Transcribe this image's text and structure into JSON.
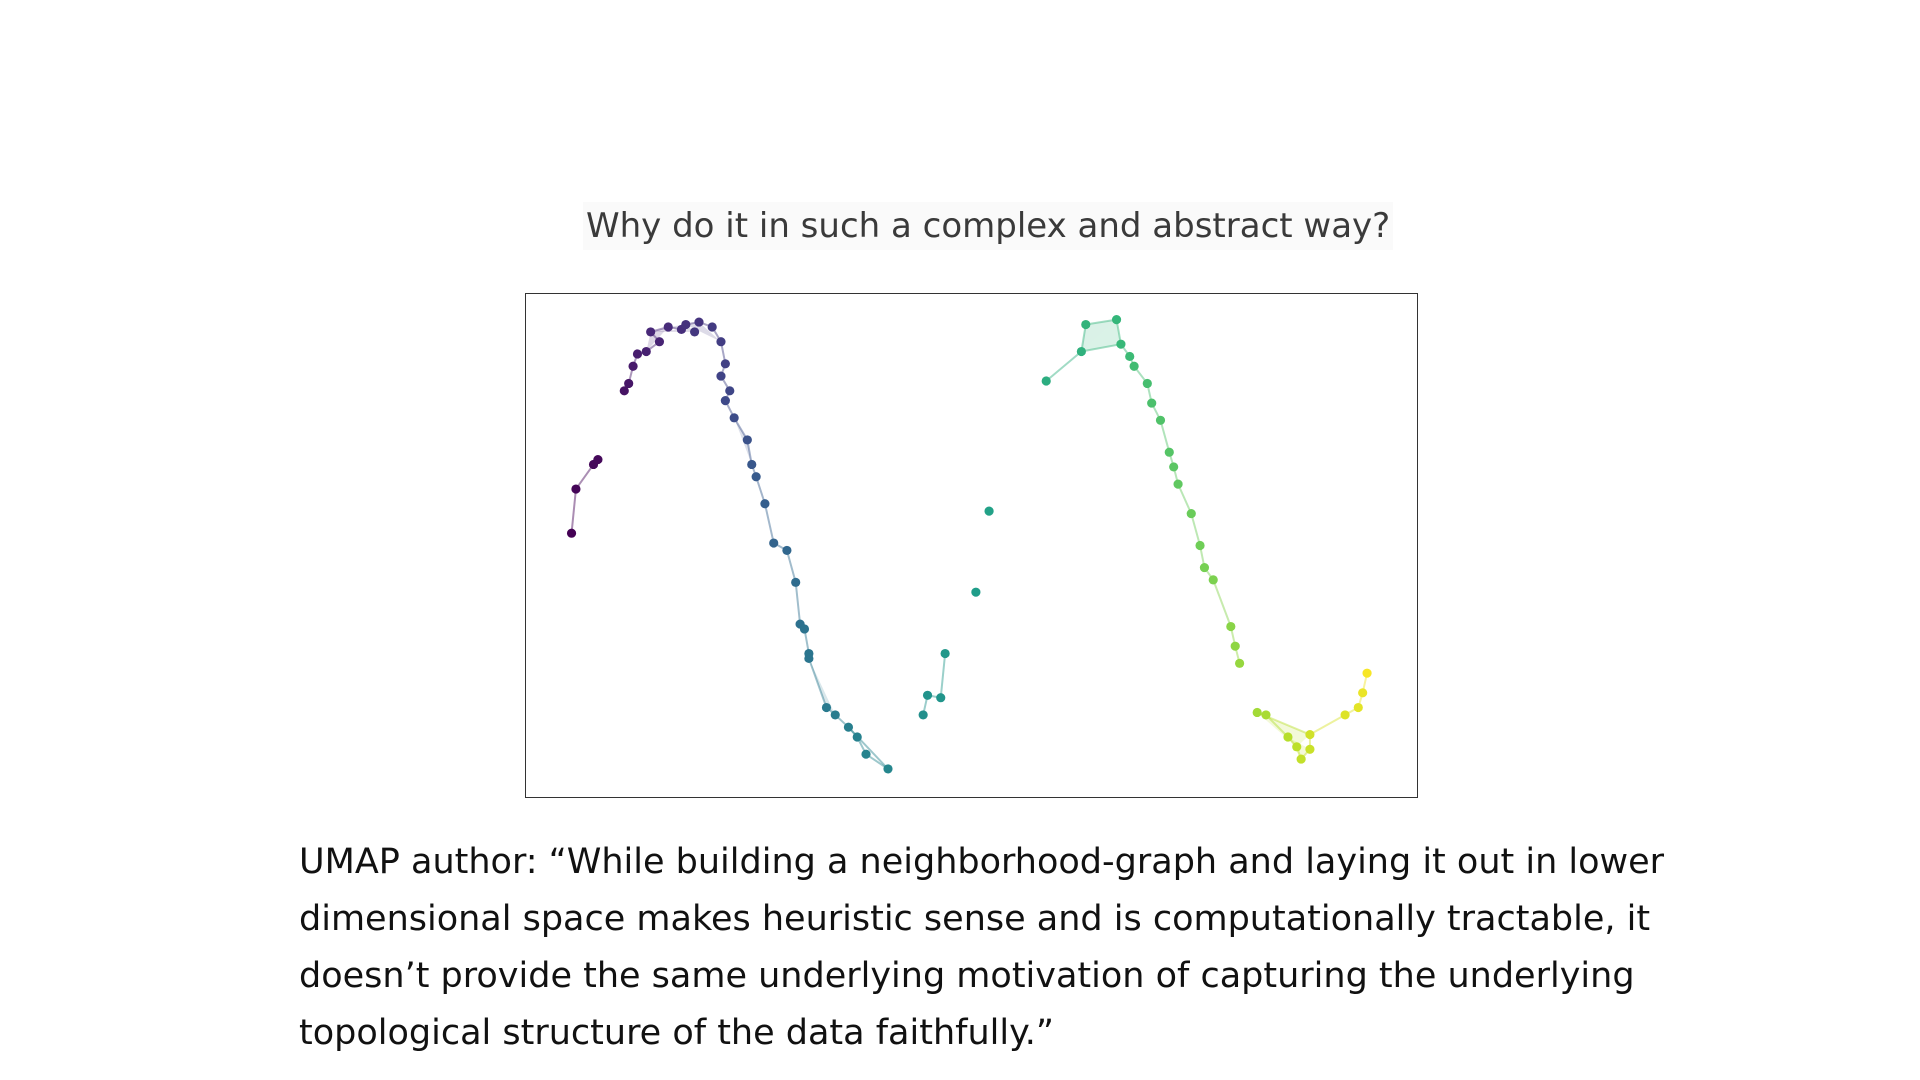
{
  "slide": {
    "question": "Why do it in such a complex and abstract way?",
    "quote": "UMAP author: “While building a neighborhood-graph and laying it out in lower dimensional space makes heuristic sense and is computationally tractable, it doesn’t provide the same underlying motivation of capturing the underlying topological structure of the data faithfully.”"
  },
  "figure": {
    "colormap": [
      "#440154",
      "#482878",
      "#3e4a89",
      "#31688e",
      "#26828e",
      "#1f9e89",
      "#35b779",
      "#6ece58",
      "#b5de2b",
      "#fde725"
    ],
    "edge_opacity": 0.45,
    "fill_opacity": 0.18
  },
  "chart_data": {
    "type": "scatter",
    "title": "",
    "xlabel": "",
    "ylabel": "",
    "axes": "none",
    "grid": false,
    "xlim": [
      0,
      100
    ],
    "ylim": [
      0,
      100
    ],
    "points": [
      {
        "x": 4.5,
        "y": 52.5,
        "c": 0.0
      },
      {
        "x": 5.0,
        "y": 61.5,
        "c": 0.01
      },
      {
        "x": 7.0,
        "y": 66.5,
        "c": 0.02
      },
      {
        "x": 7.5,
        "y": 67.5,
        "c": 0.02
      },
      {
        "x": 10.5,
        "y": 81.5,
        "c": 0.05
      },
      {
        "x": 11.0,
        "y": 83.0,
        "c": 0.06
      },
      {
        "x": 11.5,
        "y": 86.5,
        "c": 0.07
      },
      {
        "x": 12.0,
        "y": 89.0,
        "c": 0.08
      },
      {
        "x": 13.0,
        "y": 89.5,
        "c": 0.09
      },
      {
        "x": 14.5,
        "y": 91.5,
        "c": 0.1
      },
      {
        "x": 13.5,
        "y": 93.5,
        "c": 0.11
      },
      {
        "x": 15.5,
        "y": 94.5,
        "c": 0.12
      },
      {
        "x": 17.0,
        "y": 94.0,
        "c": 0.13
      },
      {
        "x": 17.5,
        "y": 95.0,
        "c": 0.14
      },
      {
        "x": 19.0,
        "y": 95.5,
        "c": 0.15
      },
      {
        "x": 18.5,
        "y": 93.5,
        "c": 0.16
      },
      {
        "x": 21.5,
        "y": 91.5,
        "c": 0.18
      },
      {
        "x": 20.5,
        "y": 94.5,
        "c": 0.17
      },
      {
        "x": 22.0,
        "y": 87.0,
        "c": 0.19
      },
      {
        "x": 21.5,
        "y": 84.5,
        "c": 0.2
      },
      {
        "x": 22.5,
        "y": 81.5,
        "c": 0.21
      },
      {
        "x": 22.0,
        "y": 79.5,
        "c": 0.22
      },
      {
        "x": 23.0,
        "y": 76.0,
        "c": 0.23
      },
      {
        "x": 24.5,
        "y": 71.5,
        "c": 0.25
      },
      {
        "x": 25.0,
        "y": 66.5,
        "c": 0.27
      },
      {
        "x": 25.5,
        "y": 64.0,
        "c": 0.28
      },
      {
        "x": 26.5,
        "y": 58.5,
        "c": 0.3
      },
      {
        "x": 27.5,
        "y": 50.5,
        "c": 0.32
      },
      {
        "x": 29.0,
        "y": 49.0,
        "c": 0.33
      },
      {
        "x": 30.0,
        "y": 42.5,
        "c": 0.35
      },
      {
        "x": 30.5,
        "y": 34.0,
        "c": 0.37
      },
      {
        "x": 31.0,
        "y": 33.0,
        "c": 0.38
      },
      {
        "x": 31.5,
        "y": 28.0,
        "c": 0.39
      },
      {
        "x": 31.5,
        "y": 27.0,
        "c": 0.39
      },
      {
        "x": 33.5,
        "y": 17.0,
        "c": 0.41
      },
      {
        "x": 34.5,
        "y": 15.5,
        "c": 0.42
      },
      {
        "x": 36.0,
        "y": 13.0,
        "c": 0.43
      },
      {
        "x": 37.0,
        "y": 11.0,
        "c": 0.44
      },
      {
        "x": 38.0,
        "y": 7.5,
        "c": 0.45
      },
      {
        "x": 40.5,
        "y": 4.5,
        "c": 0.46
      },
      {
        "x": 44.5,
        "y": 15.5,
        "c": 0.5
      },
      {
        "x": 45.0,
        "y": 19.5,
        "c": 0.51
      },
      {
        "x": 46.5,
        "y": 19.0,
        "c": 0.52
      },
      {
        "x": 47.0,
        "y": 28.0,
        "c": 0.53
      },
      {
        "x": 50.5,
        "y": 40.5,
        "c": 0.55
      },
      {
        "x": 52.0,
        "y": 57.0,
        "c": 0.57
      },
      {
        "x": 58.5,
        "y": 83.5,
        "c": 0.62
      },
      {
        "x": 62.5,
        "y": 89.5,
        "c": 0.64
      },
      {
        "x": 63.0,
        "y": 95.0,
        "c": 0.65
      },
      {
        "x": 66.5,
        "y": 96.0,
        "c": 0.66
      },
      {
        "x": 67.0,
        "y": 91.0,
        "c": 0.67
      },
      {
        "x": 68.0,
        "y": 88.5,
        "c": 0.68
      },
      {
        "x": 68.5,
        "y": 86.5,
        "c": 0.69
      },
      {
        "x": 70.0,
        "y": 83.0,
        "c": 0.7
      },
      {
        "x": 70.5,
        "y": 79.0,
        "c": 0.71
      },
      {
        "x": 71.5,
        "y": 75.5,
        "c": 0.72
      },
      {
        "x": 72.5,
        "y": 69.0,
        "c": 0.73
      },
      {
        "x": 73.0,
        "y": 66.0,
        "c": 0.74
      },
      {
        "x": 73.5,
        "y": 62.5,
        "c": 0.75
      },
      {
        "x": 75.0,
        "y": 56.5,
        "c": 0.77
      },
      {
        "x": 76.0,
        "y": 50.0,
        "c": 0.78
      },
      {
        "x": 76.5,
        "y": 45.5,
        "c": 0.79
      },
      {
        "x": 77.5,
        "y": 43.0,
        "c": 0.8
      },
      {
        "x": 79.5,
        "y": 33.5,
        "c": 0.82
      },
      {
        "x": 80.0,
        "y": 29.5,
        "c": 0.83
      },
      {
        "x": 80.5,
        "y": 26.0,
        "c": 0.84
      },
      {
        "x": 82.5,
        "y": 16.0,
        "c": 0.86
      },
      {
        "x": 83.5,
        "y": 15.5,
        "c": 0.87
      },
      {
        "x": 86.0,
        "y": 11.0,
        "c": 0.89
      },
      {
        "x": 87.0,
        "y": 9.0,
        "c": 0.9
      },
      {
        "x": 87.5,
        "y": 6.5,
        "c": 0.91
      },
      {
        "x": 88.5,
        "y": 8.5,
        "c": 0.92
      },
      {
        "x": 88.5,
        "y": 11.5,
        "c": 0.93
      },
      {
        "x": 92.5,
        "y": 15.5,
        "c": 0.95
      },
      {
        "x": 94.0,
        "y": 17.0,
        "c": 0.96
      },
      {
        "x": 94.5,
        "y": 20.0,
        "c": 0.97
      },
      {
        "x": 95.0,
        "y": 24.0,
        "c": 0.99
      }
    ],
    "edges": [
      [
        0,
        1
      ],
      [
        1,
        2
      ],
      [
        2,
        3
      ],
      [
        4,
        5
      ],
      [
        5,
        6
      ],
      [
        6,
        7
      ],
      [
        7,
        8
      ],
      [
        8,
        9
      ],
      [
        9,
        10
      ],
      [
        10,
        11
      ],
      [
        11,
        12
      ],
      [
        12,
        13
      ],
      [
        13,
        14
      ],
      [
        14,
        17
      ],
      [
        17,
        16
      ],
      [
        16,
        18
      ],
      [
        18,
        19
      ],
      [
        19,
        20
      ],
      [
        20,
        21
      ],
      [
        21,
        22
      ],
      [
        22,
        23
      ],
      [
        23,
        24
      ],
      [
        24,
        25
      ],
      [
        25,
        26
      ],
      [
        26,
        27
      ],
      [
        27,
        28
      ],
      [
        28,
        29
      ],
      [
        29,
        30
      ],
      [
        30,
        31
      ],
      [
        31,
        32
      ],
      [
        32,
        33
      ],
      [
        33,
        34
      ],
      [
        34,
        35
      ],
      [
        35,
        36
      ],
      [
        36,
        37
      ],
      [
        37,
        38
      ],
      [
        38,
        39
      ],
      [
        36,
        39
      ],
      [
        40,
        41
      ],
      [
        41,
        42
      ],
      [
        42,
        43
      ],
      [
        46,
        47
      ],
      [
        47,
        48
      ],
      [
        48,
        49
      ],
      [
        49,
        50
      ],
      [
        47,
        50
      ],
      [
        50,
        51
      ],
      [
        51,
        52
      ],
      [
        52,
        53
      ],
      [
        53,
        54
      ],
      [
        54,
        55
      ],
      [
        55,
        56
      ],
      [
        56,
        57
      ],
      [
        57,
        58
      ],
      [
        58,
        59
      ],
      [
        59,
        60
      ],
      [
        60,
        61
      ],
      [
        61,
        62
      ],
      [
        62,
        63
      ],
      [
        63,
        64
      ],
      [
        64,
        65
      ],
      [
        66,
        67
      ],
      [
        67,
        68
      ],
      [
        68,
        69
      ],
      [
        69,
        70
      ],
      [
        70,
        71
      ],
      [
        71,
        72
      ],
      [
        66,
        72
      ],
      [
        72,
        73
      ],
      [
        73,
        74
      ],
      [
        74,
        75
      ],
      [
        75,
        76
      ]
    ],
    "faces": [
      [
        8,
        10,
        11
      ],
      [
        11,
        13,
        15
      ],
      [
        13,
        14,
        16
      ],
      [
        10,
        12,
        15
      ],
      [
        47,
        48,
        49
      ],
      [
        47,
        49,
        50
      ],
      [
        66,
        69,
        72
      ],
      [
        68,
        70,
        71
      ],
      [
        22,
        23,
        24
      ],
      [
        33,
        34,
        35
      ]
    ]
  }
}
